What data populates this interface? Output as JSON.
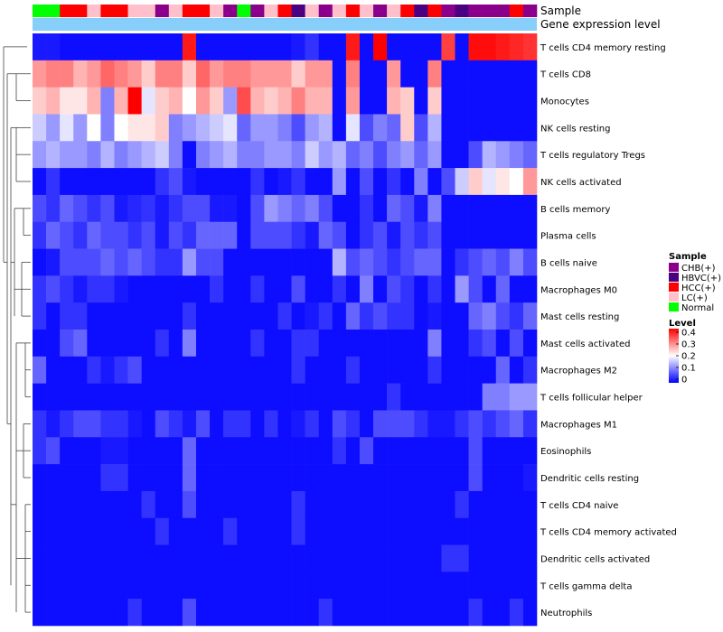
{
  "chart_data": {
    "type": "heatmap",
    "title": "",
    "annotation_tracks": [
      "Sample",
      "Gene expression level"
    ],
    "rows": [
      "T cells CD4 memory resting",
      "T cells CD8",
      "Monocytes",
      "NK cells resting",
      "T cells regulatory  Tregs",
      "NK cells activated",
      "B cells memory",
      "Plasma cells",
      "B cells naive",
      "Macrophages M0",
      "Mast cells resting",
      "Mast cells activated",
      "Macrophages M2",
      "T cells follicular helper",
      "Macrophages M1",
      "Eosinophils",
      "Dendritic cells resting",
      "T cells CD4 naive",
      "T cells CD4 memory activated",
      "Dendritic cells activated",
      "T cells gamma delta",
      "Neutrophils"
    ],
    "sample_groups": [
      "Normal",
      "Normal",
      "HCC(+)",
      "HCC(+)",
      "LC(+)",
      "HCC(+)",
      "HCC(+)",
      "LC(+)",
      "LC(+)",
      "CHB(+)",
      "LC(+)",
      "HCC(+)",
      "HCC(+)",
      "LC(+)",
      "CHB(+)",
      "Normal",
      "CHB(+)",
      "LC(+)",
      "HCC(+)",
      "HBVC(+)",
      "LC(+)",
      "CHB(+)",
      "LC(+)",
      "HCC(+)",
      "LC(+)",
      "CHB(+)",
      "LC(+)",
      "HCC(+)",
      "HBVC(+)",
      "HCC(+)",
      "CHB(+)",
      "HBVC(+)",
      "CHB(+)",
      "CHB(+)",
      "CHB(+)",
      "HCC(+)",
      "CHB(+)"
    ],
    "gene_expression_level_color": "#87cefa",
    "values": [
      [
        0.02,
        0.02,
        0.01,
        0.01,
        0.01,
        0.01,
        0.01,
        0.01,
        0.01,
        0.01,
        0.01,
        0.38,
        0.01,
        0.01,
        0.01,
        0.01,
        0.01,
        0.01,
        0.01,
        0.02,
        0.04,
        0.01,
        0.01,
        0.38,
        0.01,
        0.4,
        0.01,
        0.01,
        0.01,
        0.01,
        0.35,
        0.01,
        0.39,
        0.39,
        0.38,
        0.37,
        0.36
      ],
      [
        0.28,
        0.3,
        0.3,
        0.26,
        0.28,
        0.32,
        0.3,
        0.28,
        0.24,
        0.3,
        0.3,
        0.24,
        0.32,
        0.28,
        0.3,
        0.3,
        0.28,
        0.28,
        0.28,
        0.24,
        0.28,
        0.28,
        0.01,
        0.3,
        0.01,
        0.01,
        0.28,
        0.01,
        0.01,
        0.3,
        0.01,
        0.01,
        0.01,
        0.01,
        0.01,
        0.01,
        0.01
      ],
      [
        0.24,
        0.26,
        0.22,
        0.22,
        0.26,
        0.1,
        0.26,
        0.4,
        0.18,
        0.24,
        0.26,
        0.2,
        0.28,
        0.24,
        0.12,
        0.34,
        0.26,
        0.24,
        0.26,
        0.3,
        0.26,
        0.26,
        0.01,
        0.28,
        0.01,
        0.01,
        0.26,
        0.24,
        0.01,
        0.24,
        0.01,
        0.01,
        0.01,
        0.01,
        0.01,
        0.01,
        0.01
      ],
      [
        0.16,
        0.12,
        0.18,
        0.12,
        0.2,
        0.1,
        0.2,
        0.22,
        0.22,
        0.24,
        0.1,
        0.12,
        0.14,
        0.16,
        0.18,
        0.08,
        0.12,
        0.12,
        0.1,
        0.06,
        0.12,
        0.14,
        0.01,
        0.18,
        0.06,
        0.1,
        0.08,
        0.24,
        0.06,
        0.14,
        0.01,
        0.01,
        0.01,
        0.01,
        0.01,
        0.01,
        0.01
      ],
      [
        0.12,
        0.14,
        0.12,
        0.12,
        0.1,
        0.14,
        0.1,
        0.12,
        0.14,
        0.16,
        0.1,
        0.01,
        0.1,
        0.12,
        0.14,
        0.1,
        0.1,
        0.12,
        0.12,
        0.1,
        0.16,
        0.12,
        0.14,
        0.08,
        0.1,
        0.06,
        0.1,
        0.12,
        0.08,
        0.12,
        0.01,
        0.01,
        0.06,
        0.14,
        0.12,
        0.1,
        0.08
      ],
      [
        0.01,
        0.04,
        0.01,
        0.01,
        0.01,
        0.01,
        0.01,
        0.01,
        0.01,
        0.04,
        0.06,
        0.02,
        0.01,
        0.01,
        0.01,
        0.01,
        0.04,
        0.01,
        0.02,
        0.04,
        0.01,
        0.01,
        0.12,
        0.01,
        0.06,
        0.01,
        0.04,
        0.01,
        0.1,
        0.01,
        0.06,
        0.16,
        0.24,
        0.18,
        0.22,
        0.2,
        0.28
      ],
      [
        0.06,
        0.04,
        0.08,
        0.06,
        0.04,
        0.06,
        0.02,
        0.03,
        0.04,
        0.02,
        0.04,
        0.06,
        0.06,
        0.02,
        0.02,
        0.01,
        0.06,
        0.12,
        0.1,
        0.08,
        0.1,
        0.06,
        0.01,
        0.01,
        0.04,
        0.01,
        0.08,
        0.06,
        0.02,
        0.1,
        0.01,
        0.01,
        0.01,
        0.01,
        0.01,
        0.01,
        0.01
      ],
      [
        0.04,
        0.08,
        0.06,
        0.04,
        0.08,
        0.06,
        0.06,
        0.04,
        0.06,
        0.02,
        0.06,
        0.04,
        0.08,
        0.08,
        0.08,
        0.01,
        0.06,
        0.06,
        0.06,
        0.04,
        0.02,
        0.08,
        0.06,
        0.01,
        0.04,
        0.06,
        0.02,
        0.06,
        0.04,
        0.06,
        0.01,
        0.01,
        0.01,
        0.01,
        0.01,
        0.01,
        0.01
      ],
      [
        0.01,
        0.02,
        0.06,
        0.06,
        0.06,
        0.08,
        0.06,
        0.08,
        0.06,
        0.04,
        0.04,
        0.12,
        0.06,
        0.06,
        0.01,
        0.01,
        0.01,
        0.01,
        0.01,
        0.01,
        0.01,
        0.01,
        0.14,
        0.06,
        0.08,
        0.06,
        0.04,
        0.06,
        0.08,
        0.08,
        0.01,
        0.04,
        0.06,
        0.08,
        0.06,
        0.1,
        0.06
      ],
      [
        0.04,
        0.06,
        0.04,
        0.02,
        0.04,
        0.04,
        0.02,
        0.01,
        0.01,
        0.01,
        0.01,
        0.01,
        0.01,
        0.04,
        0.01,
        0.01,
        0.04,
        0.01,
        0.01,
        0.06,
        0.01,
        0.01,
        0.04,
        0.01,
        0.1,
        0.01,
        0.06,
        0.04,
        0.01,
        0.04,
        0.01,
        0.12,
        0.06,
        0.01,
        0.08,
        0.01,
        0.01
      ],
      [
        0.04,
        0.01,
        0.04,
        0.04,
        0.01,
        0.01,
        0.01,
        0.01,
        0.01,
        0.01,
        0.01,
        0.04,
        0.01,
        0.01,
        0.01,
        0.01,
        0.01,
        0.01,
        0.04,
        0.01,
        0.02,
        0.04,
        0.01,
        0.08,
        0.04,
        0.06,
        0.04,
        0.04,
        0.01,
        0.02,
        0.01,
        0.01,
        0.08,
        0.1,
        0.06,
        0.04,
        0.08
      ],
      [
        0.01,
        0.01,
        0.06,
        0.08,
        0.01,
        0.01,
        0.01,
        0.01,
        0.01,
        0.04,
        0.01,
        0.1,
        0.01,
        0.01,
        0.01,
        0.01,
        0.04,
        0.01,
        0.01,
        0.04,
        0.04,
        0.01,
        0.01,
        0.01,
        0.01,
        0.01,
        0.01,
        0.01,
        0.01,
        0.1,
        0.01,
        0.01,
        0.04,
        0.06,
        0.01,
        0.06,
        0.01
      ],
      [
        0.08,
        0.01,
        0.01,
        0.01,
        0.04,
        0.02,
        0.04,
        0.06,
        0.01,
        0.01,
        0.01,
        0.01,
        0.01,
        0.01,
        0.01,
        0.01,
        0.01,
        0.01,
        0.01,
        0.04,
        0.01,
        0.01,
        0.01,
        0.04,
        0.01,
        0.01,
        0.01,
        0.01,
        0.01,
        0.04,
        0.01,
        0.01,
        0.01,
        0.01,
        0.08,
        0.01,
        0.04
      ],
      [
        0.01,
        0.01,
        0.01,
        0.01,
        0.01,
        0.01,
        0.01,
        0.01,
        0.01,
        0.01,
        0.01,
        0.01,
        0.01,
        0.01,
        0.01,
        0.01,
        0.01,
        0.01,
        0.01,
        0.01,
        0.01,
        0.01,
        0.01,
        0.01,
        0.01,
        0.01,
        0.04,
        0.01,
        0.01,
        0.01,
        0.01,
        0.01,
        0.01,
        0.1,
        0.1,
        0.12,
        0.12
      ],
      [
        0.04,
        0.02,
        0.04,
        0.06,
        0.06,
        0.04,
        0.04,
        0.02,
        0.01,
        0.06,
        0.04,
        0.02,
        0.06,
        0.01,
        0.04,
        0.04,
        0.01,
        0.04,
        0.01,
        0.02,
        0.04,
        0.01,
        0.06,
        0.04,
        0.01,
        0.06,
        0.06,
        0.06,
        0.04,
        0.02,
        0.02,
        0.04,
        0.06,
        0.04,
        0.06,
        0.08,
        0.04
      ],
      [
        0.04,
        0.06,
        0.01,
        0.01,
        0.01,
        0.02,
        0.02,
        0.01,
        0.01,
        0.01,
        0.01,
        0.08,
        0.01,
        0.01,
        0.01,
        0.01,
        0.01,
        0.01,
        0.01,
        0.01,
        0.01,
        0.01,
        0.04,
        0.01,
        0.06,
        0.01,
        0.01,
        0.01,
        0.01,
        0.01,
        0.01,
        0.01,
        0.06,
        0.01,
        0.01,
        0.01,
        0.01
      ],
      [
        0.01,
        0.01,
        0.01,
        0.01,
        0.01,
        0.04,
        0.04,
        0.01,
        0.01,
        0.01,
        0.01,
        0.08,
        0.01,
        0.01,
        0.01,
        0.01,
        0.01,
        0.01,
        0.01,
        0.01,
        0.01,
        0.01,
        0.01,
        0.01,
        0.01,
        0.01,
        0.01,
        0.01,
        0.01,
        0.01,
        0.01,
        0.01,
        0.06,
        0.01,
        0.01,
        0.01,
        0.02
      ],
      [
        0.01,
        0.01,
        0.01,
        0.01,
        0.01,
        0.01,
        0.01,
        0.01,
        0.04,
        0.01,
        0.01,
        0.06,
        0.01,
        0.01,
        0.01,
        0.01,
        0.01,
        0.01,
        0.01,
        0.04,
        0.01,
        0.01,
        0.01,
        0.01,
        0.01,
        0.01,
        0.01,
        0.01,
        0.01,
        0.01,
        0.01,
        0.04,
        0.01,
        0.01,
        0.01,
        0.01,
        0.01
      ],
      [
        0.01,
        0.01,
        0.01,
        0.01,
        0.01,
        0.01,
        0.01,
        0.01,
        0.01,
        0.04,
        0.01,
        0.01,
        0.01,
        0.01,
        0.04,
        0.01,
        0.01,
        0.01,
        0.01,
        0.04,
        0.01,
        0.01,
        0.01,
        0.01,
        0.01,
        0.01,
        0.01,
        0.01,
        0.01,
        0.01,
        0.01,
        0.01,
        0.01,
        0.01,
        0.01,
        0.01,
        0.01
      ],
      [
        0.01,
        0.01,
        0.01,
        0.01,
        0.01,
        0.01,
        0.01,
        0.01,
        0.01,
        0.01,
        0.01,
        0.01,
        0.01,
        0.01,
        0.01,
        0.01,
        0.01,
        0.01,
        0.01,
        0.01,
        0.01,
        0.01,
        0.01,
        0.01,
        0.01,
        0.01,
        0.01,
        0.01,
        0.01,
        0.01,
        0.04,
        0.04,
        0.01,
        0.01,
        0.01,
        0.01,
        0.01
      ],
      [
        0.01,
        0.01,
        0.01,
        0.01,
        0.01,
        0.01,
        0.01,
        0.01,
        0.01,
        0.01,
        0.01,
        0.01,
        0.01,
        0.01,
        0.01,
        0.01,
        0.01,
        0.01,
        0.01,
        0.01,
        0.01,
        0.01,
        0.01,
        0.01,
        0.01,
        0.01,
        0.01,
        0.01,
        0.01,
        0.01,
        0.01,
        0.01,
        0.01,
        0.01,
        0.01,
        0.01,
        0.01
      ],
      [
        0.01,
        0.01,
        0.01,
        0.01,
        0.01,
        0.01,
        0.01,
        0.04,
        0.01,
        0.01,
        0.01,
        0.06,
        0.01,
        0.01,
        0.01,
        0.01,
        0.01,
        0.01,
        0.01,
        0.01,
        0.01,
        0.04,
        0.01,
        0.01,
        0.01,
        0.01,
        0.01,
        0.01,
        0.01,
        0.01,
        0.01,
        0.01,
        0.04,
        0.01,
        0.01,
        0.04,
        0.01
      ]
    ],
    "color_scale": {
      "low": "#0000ff",
      "mid": "#ffffff",
      "high": "#ff0000",
      "range": [
        0,
        0.4
      ]
    },
    "legend": {
      "sample": {
        "title": "Sample",
        "entries": [
          {
            "label": "CHB(+)",
            "color": "#8b008b"
          },
          {
            "label": "HBVC(+)",
            "color": "#4b0082"
          },
          {
            "label": "HCC(+)",
            "color": "#ff0000"
          },
          {
            "label": "LC(+)",
            "color": "#ffc0cb"
          },
          {
            "label": "Normal",
            "color": "#00ff00"
          }
        ]
      },
      "level": {
        "title": "Level",
        "ticks": [
          "0.4",
          "0.3",
          "0.2",
          "0.1",
          "0"
        ],
        "tick_values": [
          0.4,
          0.3,
          0.2,
          0.1,
          0
        ]
      }
    }
  }
}
